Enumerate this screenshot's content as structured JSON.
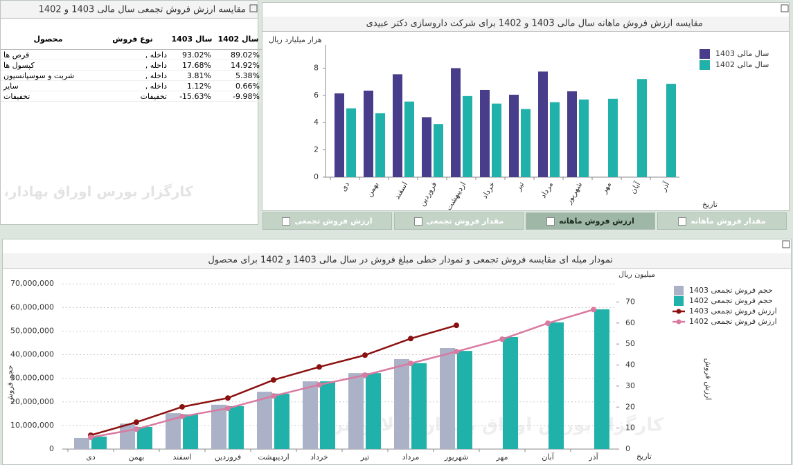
{
  "table": {
    "title": "مقایسه ارزش فروش تجمعی سال مالی 1403 و 1402",
    "headers": [
      "محصول",
      "نوع فروش",
      "سال 1403",
      "سال 1402"
    ],
    "rows": [
      [
        "قرص ها",
        "داخله ,",
        "93.02%",
        "89.02%"
      ],
      [
        "کپسول ها",
        "داخله ,",
        "17.68%",
        "14.92%"
      ],
      [
        "شربت و سوسپانسیون",
        "داخله ,",
        "3.81%",
        "5.38%"
      ],
      [
        "سایر",
        "داخله ,",
        "1.12%",
        "0.66%"
      ],
      [
        "تخفیفات",
        "تخفیفات",
        "-15.63%",
        "-9.98%"
      ]
    ]
  },
  "tabs": [
    "ارزش فروش تجمعی",
    "مقدار فروش تجمعی",
    "ارزش فروش ماهانه",
    "مقدار فروش ماهانه"
  ],
  "active_tab": 2,
  "watermark": "کارگزار بورس اوراق بهادار، کالا و انرژی",
  "chart_data": [
    {
      "type": "bar",
      "title": "مقایسه ارزش فروش ماهانه سال مالی 1403 و 1402 برای شرکت داروسازی دکتر عبیدی",
      "y_label": "هزار میلیارد ریال",
      "x_label": "تاریخ",
      "categories": [
        "دی",
        "بهمن",
        "اسفند",
        "فروردین",
        "اردیبهشت",
        "خرداد",
        "تیر",
        "مرداد",
        "شهریور",
        "مهر",
        "آبان",
        "آذر"
      ],
      "series": [
        {
          "name": "سال مالی 1403",
          "color": "#483d8b",
          "values": [
            6.15,
            6.35,
            7.55,
            4.4,
            8,
            6.4,
            6.05,
            7.75,
            6.3,
            null,
            null,
            null
          ]
        },
        {
          "name": "سال مالی 1402",
          "color": "#20b2aa",
          "values": [
            5.05,
            4.7,
            5.55,
            3.9,
            5.95,
            5.4,
            5,
            5.5,
            5.7,
            5.75,
            7.2,
            6.85
          ]
        }
      ],
      "ylim": [
        0,
        9.7
      ],
      "yticks": [
        0,
        2,
        4,
        6,
        8
      ],
      "grid": false,
      "legend": "right"
    },
    {
      "type": "bar_line",
      "title": "نمودار میله ای مقایسه فروش تجمعی و نمودار خطی مبلغ فروش در سال مالی 1403 و 1402 برای محصول",
      "y_label": "حجم فروش",
      "y2_label": "ارزش فروش",
      "y2_unit": "میلیون ریال",
      "x_label": "تاریخ",
      "categories": [
        "دی",
        "بهمن",
        "اسفند",
        "فروردین",
        "اردیبهشت",
        "خرداد",
        "تیر",
        "مرداد",
        "شهریور",
        "مهر",
        "آبان",
        "آذر"
      ],
      "series": [
        {
          "name": "حجم فروش تجمعی 1403",
          "type": "bar",
          "color": "#abb1c6",
          "values": [
            4700000,
            10800000,
            15200000,
            18800000,
            24300000,
            28700000,
            32200000,
            38100000,
            42800000,
            null,
            null,
            null
          ]
        },
        {
          "name": "حجم فروش تجمعی 1402",
          "type": "bar",
          "color": "#20b2aa",
          "values": [
            5300000,
            9400000,
            14700000,
            18200000,
            23500000,
            28700000,
            32200000,
            36400000,
            41600000,
            47500000,
            53700000,
            59200000
          ]
        },
        {
          "name": "ارزش فروش تجمعی 1403",
          "type": "line",
          "axis": "y2",
          "color": "#8b1010",
          "values": [
            6.6,
            12.8,
            20.1,
            24.3,
            32.9,
            39.1,
            44.7,
            52.6,
            58.9,
            null,
            null,
            null
          ]
        },
        {
          "name": "ارزش فروش تجمعی 1402",
          "type": "line",
          "axis": "y2",
          "color": "#d97aa0",
          "values": [
            5.6,
            9.5,
            15.5,
            19.4,
            25.3,
            30.6,
            35.2,
            40.8,
            46.4,
            52.3,
            59.9,
            66.4
          ]
        }
      ],
      "ylim": [
        0,
        73000000
      ],
      "yticks": [
        0,
        {
          "value": 10000000,
          "label": "10,000,000"
        },
        {
          "value": 20000000,
          "label": "20,000,000"
        },
        {
          "value": 30000000,
          "label": "30,000,000"
        },
        {
          "value": 40000000,
          "label": "40,000,000"
        },
        {
          "value": 50000000,
          "label": "50,000,000"
        },
        {
          "value": 60000000,
          "label": "60,000,000"
        },
        {
          "value": 70000000,
          "label": "70,000,000"
        }
      ],
      "y2lim": [
        0,
        82
      ],
      "y2ticks": [
        0,
        10,
        20,
        30,
        40,
        50,
        60,
        70
      ],
      "grid": true,
      "legend": "right"
    }
  ]
}
